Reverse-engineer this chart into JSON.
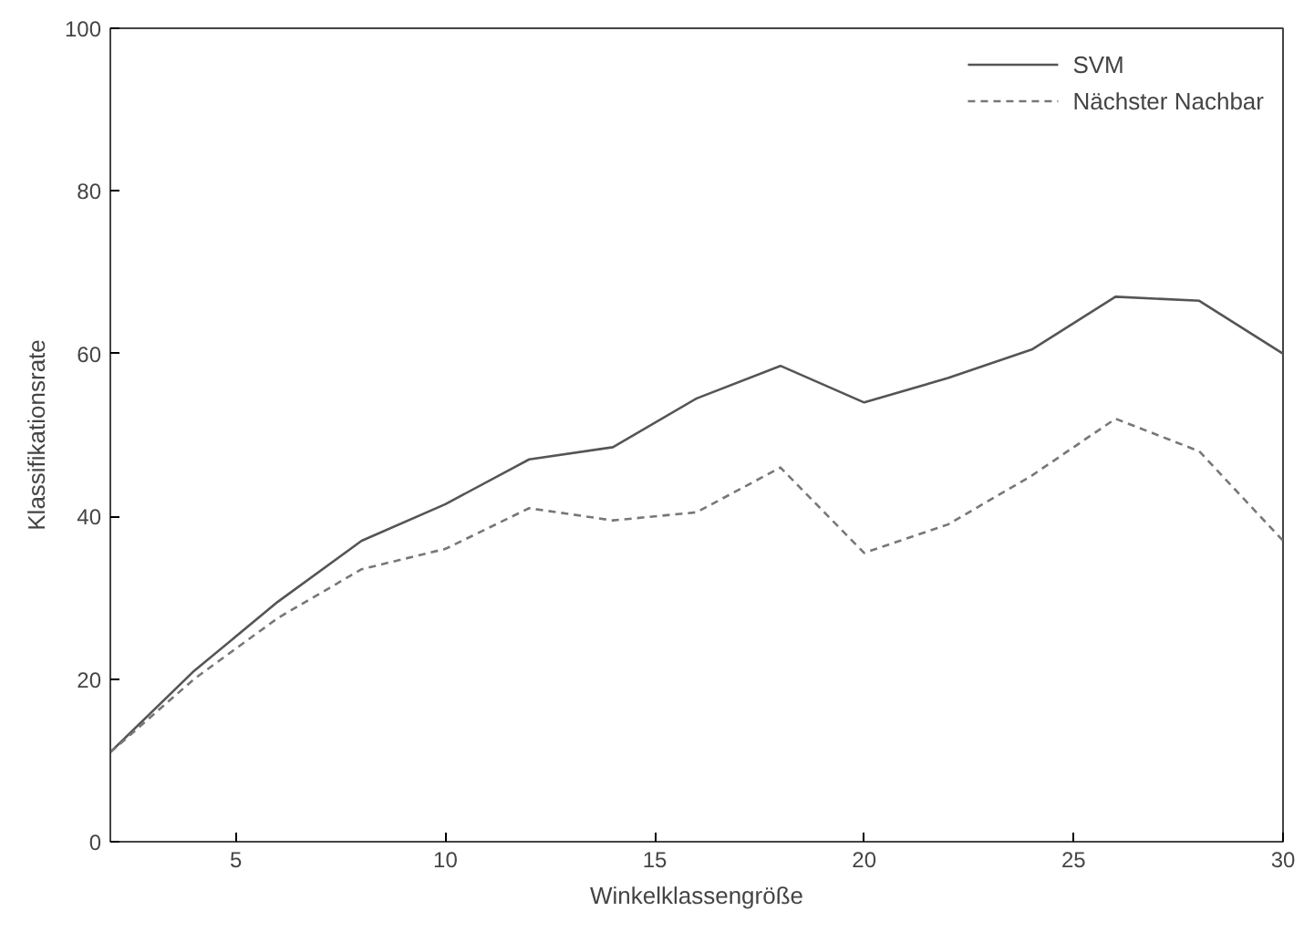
{
  "chart_data": {
    "type": "line",
    "xlabel": "Winkelklassengröße",
    "ylabel": "Klassifikationsrate",
    "x": [
      2,
      4,
      6,
      8,
      10,
      12,
      14,
      16,
      18,
      20,
      22,
      24,
      26,
      28,
      30
    ],
    "series": [
      {
        "name": "SVM",
        "color": "#555555",
        "line_style": "solid",
        "values": [
          11,
          21,
          29.5,
          37,
          41.5,
          47,
          48.5,
          54.5,
          58.5,
          54,
          57,
          60.5,
          67,
          66.5,
          60
        ]
      },
      {
        "name": "Nächster Nachbar",
        "color": "#777777",
        "line_style": "dashed",
        "values": [
          11,
          20,
          27.5,
          33.5,
          36,
          41,
          39.5,
          40.5,
          46,
          35.5,
          39,
          45,
          52,
          48,
          37
        ]
      }
    ],
    "xlim": [
      2,
      30
    ],
    "ylim": [
      0,
      100
    ],
    "xticks": [
      5,
      10,
      15,
      20,
      25,
      30
    ],
    "yticks": [
      0,
      20,
      40,
      60,
      80,
      100
    ],
    "grid": false,
    "legend": "top right"
  }
}
